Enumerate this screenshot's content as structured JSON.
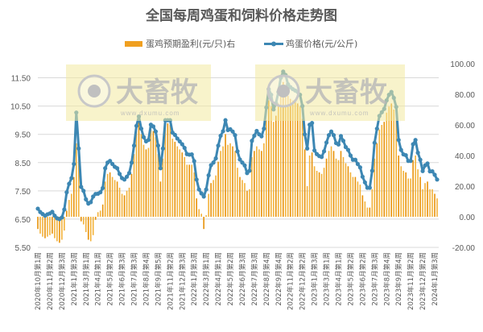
{
  "chart_data": {
    "type": "bar+line",
    "title": "全国每周鸡蛋和饲料价格走势图",
    "legend_position": "top",
    "grid": true,
    "colors": {
      "bars": "#f0a020",
      "line": "#3d87b3",
      "watermark_box": "#f2eaa0"
    },
    "watermark": {
      "logo_text": "大畜牧",
      "url": "www.dxumu.com"
    },
    "x_tick_labels": [
      "2020年10月第1周",
      "2020年11月第2周",
      "2020年12月第3周",
      "2021年1月第3周",
      "2021年3月第1周",
      "2021年4月第1周",
      "2021年5月第2周",
      "2021年6月第3周",
      "2021年7月第3周",
      "2021年8月第4周",
      "2021年9月第5周",
      "2021年11月第2周",
      "2021年12月第3周",
      "2022年1月第3周",
      "2022年3月第1周",
      "2022年4月第1周",
      "2022年5月第2周",
      "2022年6月第3周",
      "2022年7月第3周",
      "2022年8月第4周",
      "2022年9月第4周",
      "2022年11月第2周",
      "2022年12月第2周",
      "2023年1月第3周",
      "2023年3月第1周",
      "2023年4月第1周",
      "2023年5月第2周",
      "2023年6月第2周",
      "2023年7月第3周",
      "2023年8月第4周",
      "2023年9月第4周",
      "2023年11月第2周",
      "2023年12月第2周",
      "2024年1月第3周"
    ],
    "x_tick_every": 5,
    "y_left": {
      "range": [
        5.5,
        12.0
      ],
      "ticks": [
        "5.50",
        "6.50",
        "7.50",
        "8.50",
        "9.50",
        "10.50",
        "11.50"
      ]
    },
    "y_right": {
      "range": [
        -20,
        100
      ],
      "ticks": [
        "-20.00",
        "0.00",
        "20.00",
        "40.00",
        "60.00",
        "80.00",
        "100.00"
      ]
    },
    "series": [
      {
        "name": "蛋鸡预期盈利(元/只)右",
        "type": "bar",
        "axis": "right",
        "values": [
          -8,
          -11,
          -13,
          -14,
          -13,
          -12,
          -11,
          -14,
          -16,
          -17,
          -15,
          -9,
          4,
          11,
          15,
          26,
          48,
          38,
          -3,
          -5,
          -10,
          -15,
          -16,
          -12,
          -2,
          3,
          4,
          8,
          23,
          28,
          29,
          26,
          24,
          23,
          19,
          15,
          14,
          17,
          19,
          28,
          41,
          56,
          63,
          54,
          47,
          44,
          45,
          57,
          56,
          52,
          41,
          23,
          38,
          61,
          61,
          60,
          51,
          49,
          46,
          44,
          42,
          39,
          34,
          34,
          34,
          29,
          12,
          5,
          2,
          -8,
          1,
          15,
          22,
          24,
          27,
          36,
          43,
          46,
          54,
          47,
          48,
          46,
          43,
          32,
          26,
          24,
          22,
          17,
          18,
          39,
          43,
          46,
          44,
          43,
          48,
          63,
          76,
          72,
          62,
          66,
          74,
          84,
          88,
          86,
          79,
          77,
          76,
          75,
          74,
          72,
          64,
          44,
          20,
          40,
          42,
          33,
          30,
          29,
          28,
          32,
          38,
          43,
          46,
          43,
          38,
          37,
          43,
          39,
          35,
          33,
          29,
          26,
          26,
          23,
          21,
          14,
          10,
          6,
          6,
          18,
          38,
          48,
          57,
          60,
          62,
          68,
          72,
          74,
          70,
          63,
          40,
          33,
          30,
          29,
          25,
          25,
          37,
          40,
          31,
          26,
          18,
          22,
          23,
          18,
          18,
          15,
          12
        ]
      },
      {
        "name": "鸡蛋价格(元/公斤)",
        "type": "line",
        "axis": "left",
        "values": [
          6.87,
          6.75,
          6.68,
          6.62,
          6.67,
          6.7,
          6.76,
          6.62,
          6.53,
          6.5,
          6.56,
          6.84,
          7.45,
          7.75,
          7.95,
          8.45,
          10.27,
          9.0,
          7.64,
          7.5,
          7.2,
          7.05,
          7.1,
          7.3,
          7.39,
          7.4,
          7.45,
          7.6,
          8.3,
          8.5,
          8.56,
          8.45,
          8.35,
          8.3,
          8.1,
          7.95,
          7.9,
          8.0,
          8.13,
          8.5,
          9.1,
          9.8,
          10.13,
          9.7,
          9.4,
          9.25,
          9.3,
          9.84,
          9.78,
          9.6,
          9.1,
          8.3,
          9.0,
          10.0,
          10.0,
          10.0,
          9.56,
          9.48,
          9.35,
          9.25,
          9.15,
          9.02,
          8.8,
          8.78,
          8.79,
          8.55,
          7.9,
          7.55,
          7.41,
          7.3,
          7.55,
          8.05,
          8.41,
          8.5,
          8.65,
          9.1,
          9.45,
          9.61,
          10.0,
          9.65,
          9.68,
          9.6,
          9.47,
          8.9,
          8.61,
          8.5,
          8.4,
          8.13,
          8.21,
          9.27,
          9.45,
          9.62,
          9.5,
          9.43,
          9.7,
          10.45,
          11.1,
          10.9,
          10.38,
          10.6,
          11.0,
          11.5,
          11.72,
          11.6,
          11.27,
          11.17,
          11.1,
          11.05,
          11.0,
          10.9,
          10.5,
          9.5,
          9.0,
          9.84,
          9.9,
          8.93,
          8.8,
          8.73,
          8.7,
          8.9,
          9.21,
          9.47,
          9.6,
          9.47,
          9.19,
          9.14,
          9.44,
          9.27,
          9.05,
          8.95,
          8.75,
          8.6,
          8.6,
          8.45,
          8.33,
          8.0,
          7.8,
          7.61,
          7.61,
          8.21,
          9.2,
          9.7,
          10.15,
          10.28,
          10.4,
          10.7,
          10.9,
          11.0,
          10.79,
          10.47,
          9.3,
          8.95,
          8.79,
          8.76,
          8.56,
          8.56,
          9.15,
          9.3,
          8.85,
          8.6,
          8.2,
          8.4,
          8.47,
          8.19,
          8.19,
          8.07,
          7.9
        ]
      }
    ]
  }
}
